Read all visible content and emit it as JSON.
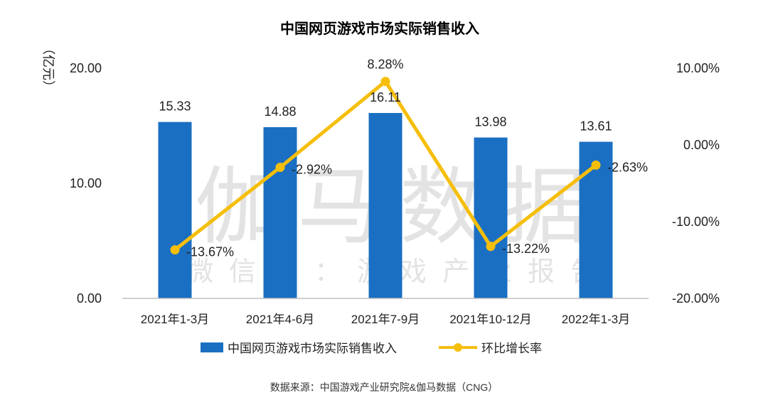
{
  "watermark": {
    "main": "伽马数据",
    "sub": "微信号：游戏产业报告"
  },
  "source": "数据来源：中国游戏产业研究院&伽马数据（CNG）",
  "chart_data": {
    "type": "bar+line",
    "title": "中国网页游戏市场实际销售收入",
    "categories": [
      "2021年1-3月",
      "2021年4-6月",
      "2021年7-9月",
      "2021年10-12月",
      "2022年1-3月"
    ],
    "bar_series": {
      "name": "中国网页游戏市场实际销售收入",
      "values": [
        15.33,
        14.88,
        16.11,
        13.98,
        13.61
      ],
      "labels": [
        "15.33",
        "14.88",
        "16.11",
        "13.98",
        "13.61"
      ],
      "color": "#1a6fc2"
    },
    "line_series": {
      "name": "环比增长率",
      "values": [
        -13.67,
        -2.92,
        8.28,
        -13.22,
        -2.63
      ],
      "labels": [
        "-13.67%",
        "-2.92%",
        "8.28%",
        "-13.22%",
        "-2.63%"
      ],
      "color": "#f5be0b"
    },
    "y_left": {
      "label": "（亿元）",
      "ylim": [
        0,
        20
      ],
      "ticks": [
        "0.00",
        "10.00",
        "20.00"
      ],
      "tick_values": [
        0,
        10,
        20
      ]
    },
    "y_right": {
      "ylim": [
        -20,
        10
      ],
      "ticks": [
        "-20.00%",
        "-10.00%",
        "0.00%",
        "10.00%"
      ],
      "tick_values": [
        -20,
        -10,
        0,
        10
      ]
    },
    "legend_position": "bottom"
  }
}
